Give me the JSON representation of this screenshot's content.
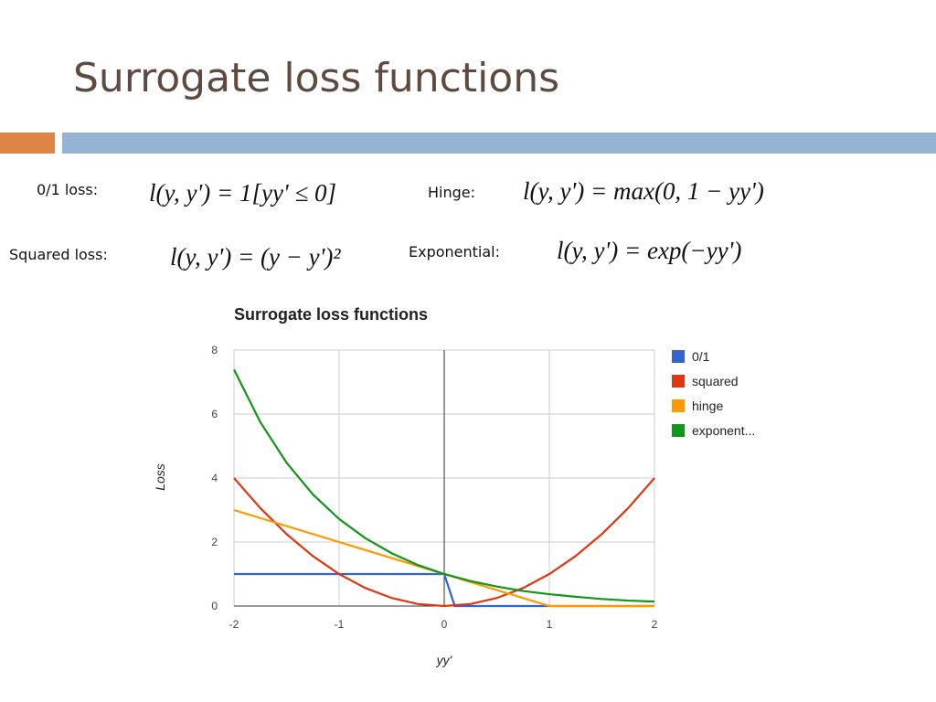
{
  "title": "Surrogate loss functions",
  "formulas": [
    {
      "label": "0/1 loss:",
      "formula": "l(y, y') = 1[yy' ≤ 0]"
    },
    {
      "label": "Hinge:",
      "formula": "l(y, y') = max(0, 1 − yy')"
    },
    {
      "label": "Squared loss:",
      "formula": "l(y, y') = (y − y')²"
    },
    {
      "label": "Exponential:",
      "formula": "l(y, y') = exp(−yy')"
    }
  ],
  "chart_data": {
    "type": "line",
    "title": "Surrogate loss functions",
    "x_label": "yy'",
    "y_label": "Loss",
    "xlim": [
      -2,
      2
    ],
    "ylim": [
      0,
      8
    ],
    "xticks": [
      -2,
      -1,
      0,
      1,
      2
    ],
    "yticks": [
      0,
      2,
      4,
      6,
      8
    ],
    "grid": true,
    "legend": "right",
    "series": [
      {
        "name": "0/1",
        "color": "#3366cc",
        "x": [
          -2,
          0,
          0.1,
          2
        ],
        "values": [
          1,
          1,
          0,
          0
        ]
      },
      {
        "name": "squared",
        "color": "#dc3912",
        "x": [
          -2,
          -1.75,
          -1.5,
          -1.25,
          -1,
          -0.75,
          -0.5,
          -0.25,
          0,
          0.25,
          0.5,
          0.75,
          1,
          1.25,
          1.5,
          1.75,
          2
        ],
        "values": [
          4,
          3.0625,
          2.25,
          1.5625,
          1,
          0.5625,
          0.25,
          0.0625,
          0,
          0.0625,
          0.25,
          0.5625,
          1,
          1.5625,
          2.25,
          3.0625,
          4
        ]
      },
      {
        "name": "hinge",
        "color": "#ff9900",
        "x": [
          -2,
          1,
          2
        ],
        "values": [
          3,
          0,
          0
        ]
      },
      {
        "name": "exponent...",
        "color": "#109618",
        "x": [
          -2,
          -1.75,
          -1.5,
          -1.25,
          -1,
          -0.75,
          -0.5,
          -0.25,
          0,
          0.25,
          0.5,
          0.75,
          1,
          1.25,
          1.5,
          1.75,
          2
        ],
        "values": [
          7.39,
          5.75,
          4.48,
          3.49,
          2.72,
          2.12,
          1.65,
          1.28,
          1,
          0.78,
          0.61,
          0.47,
          0.37,
          0.29,
          0.22,
          0.17,
          0.14
        ]
      }
    ]
  }
}
